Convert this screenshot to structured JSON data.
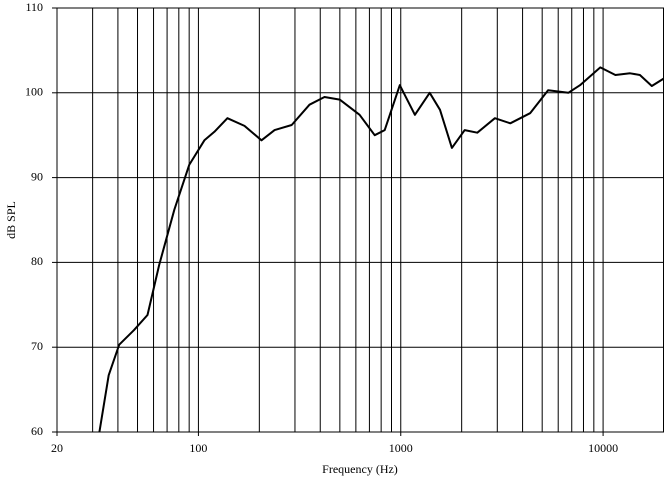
{
  "chart_data": {
    "type": "line",
    "x_label": "Frequency (Hz)",
    "y_label": "dB SPL",
    "xscale": "log",
    "grid": true,
    "xlim": [
      20,
      20000
    ],
    "ylim": [
      60,
      110
    ],
    "xticks": [
      20,
      100,
      1000,
      10000
    ],
    "xminor": [
      30,
      40,
      50,
      60,
      70,
      80,
      90,
      100,
      200,
      300,
      400,
      500,
      600,
      700,
      800,
      900,
      1000,
      2000,
      3000,
      4000,
      5000,
      6000,
      7000,
      8000,
      9000,
      10000
    ],
    "yticks": [
      60,
      70,
      80,
      90,
      100,
      110
    ],
    "series": [
      {
        "color": "#000000",
        "x": [
          32.4,
          36,
          40.6,
          48,
          56,
          64,
          76,
          90,
          107,
          120,
          139,
          169,
          205,
          238,
          289,
          354,
          420,
          499,
          626,
          743,
          833,
          989,
          1174,
          1390,
          1563,
          1790,
          2070,
          2390,
          2920,
          3480,
          4360,
          5350,
          6730,
          7690,
          9690,
          11500,
          13600,
          15200,
          17400,
          20000
        ],
        "values": [
          60,
          66.7,
          70.3,
          72,
          73.8,
          79.7,
          86.2,
          91.5,
          94.4,
          95.4,
          97,
          96.1,
          94.4,
          95.6,
          96.2,
          98.6,
          99.5,
          99.2,
          97.4,
          95,
          95.6,
          100.9,
          97.4,
          100,
          98,
          93.5,
          95.6,
          95.3,
          97,
          96.4,
          97.6,
          100.3,
          100,
          100.9,
          103,
          102.1,
          102.3,
          102.1,
          100.8,
          101.7
        ]
      }
    ]
  }
}
